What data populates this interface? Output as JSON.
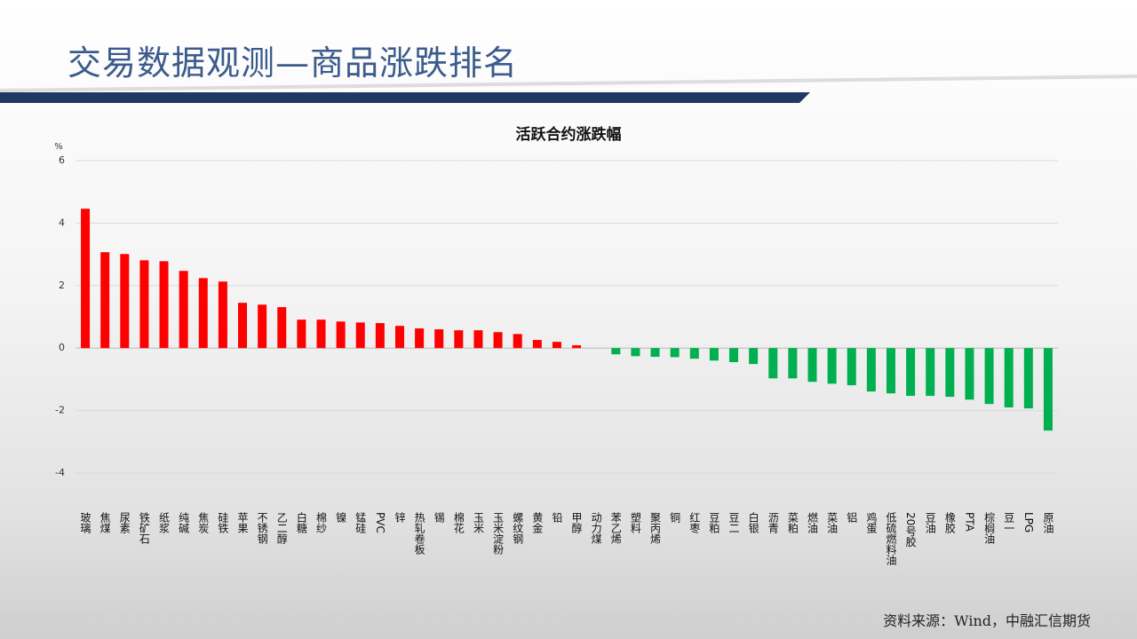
{
  "header": {
    "title": "交易数据观测—商品涨跌排名"
  },
  "footer": {
    "source": "资料来源：Wind，中融汇信期货"
  },
  "chart_data": {
    "type": "bar",
    "title": "活跃合约涨跌幅",
    "y_unit": "%",
    "categories": [
      "玻璃",
      "焦煤",
      "尿素",
      "铁矿石",
      "纸浆",
      "纯碱",
      "焦炭",
      "硅铁",
      "苹果",
      "不锈钢",
      "乙二醇",
      "白糖",
      "棉纱",
      "镍",
      "锰硅",
      "PVC",
      "锌",
      "热轧卷板",
      "锡",
      "棉花",
      "玉米",
      "玉米淀粉",
      "螺纹钢",
      "黄金",
      "铅",
      "甲醇",
      "动力煤",
      "苯乙烯",
      "塑料",
      "聚丙烯",
      "铜",
      "红枣",
      "豆粕",
      "豆二",
      "白银",
      "沥青",
      "菜粕",
      "燃油",
      "菜油",
      "铝",
      "鸡蛋",
      "低硫燃料油",
      "20号胶",
      "豆油",
      "橡胶",
      "PTA",
      "棕榈油",
      "豆一",
      "LPG",
      "原油"
    ],
    "values": [
      4.46,
      3.07,
      3.01,
      2.81,
      2.78,
      2.47,
      2.24,
      2.13,
      1.45,
      1.39,
      1.31,
      0.91,
      0.91,
      0.85,
      0.82,
      0.8,
      0.71,
      0.63,
      0.6,
      0.57,
      0.57,
      0.51,
      0.45,
      0.26,
      0.2,
      0.09,
      0,
      -0.2,
      -0.26,
      -0.28,
      -0.29,
      -0.34,
      -0.4,
      -0.45,
      -0.51,
      -0.97,
      -0.97,
      -1.08,
      -1.14,
      -1.19,
      -1.39,
      -1.45,
      -1.53,
      -1.53,
      -1.56,
      -1.65,
      -1.79,
      -1.9,
      -1.93,
      -2.64
    ],
    "colors": {
      "positive": "#ff0000",
      "negative": "#00b050"
    },
    "ylim": [
      -4,
      6
    ],
    "yticks": [
      -4,
      -2,
      0,
      2,
      4,
      6
    ],
    "grid": true
  }
}
